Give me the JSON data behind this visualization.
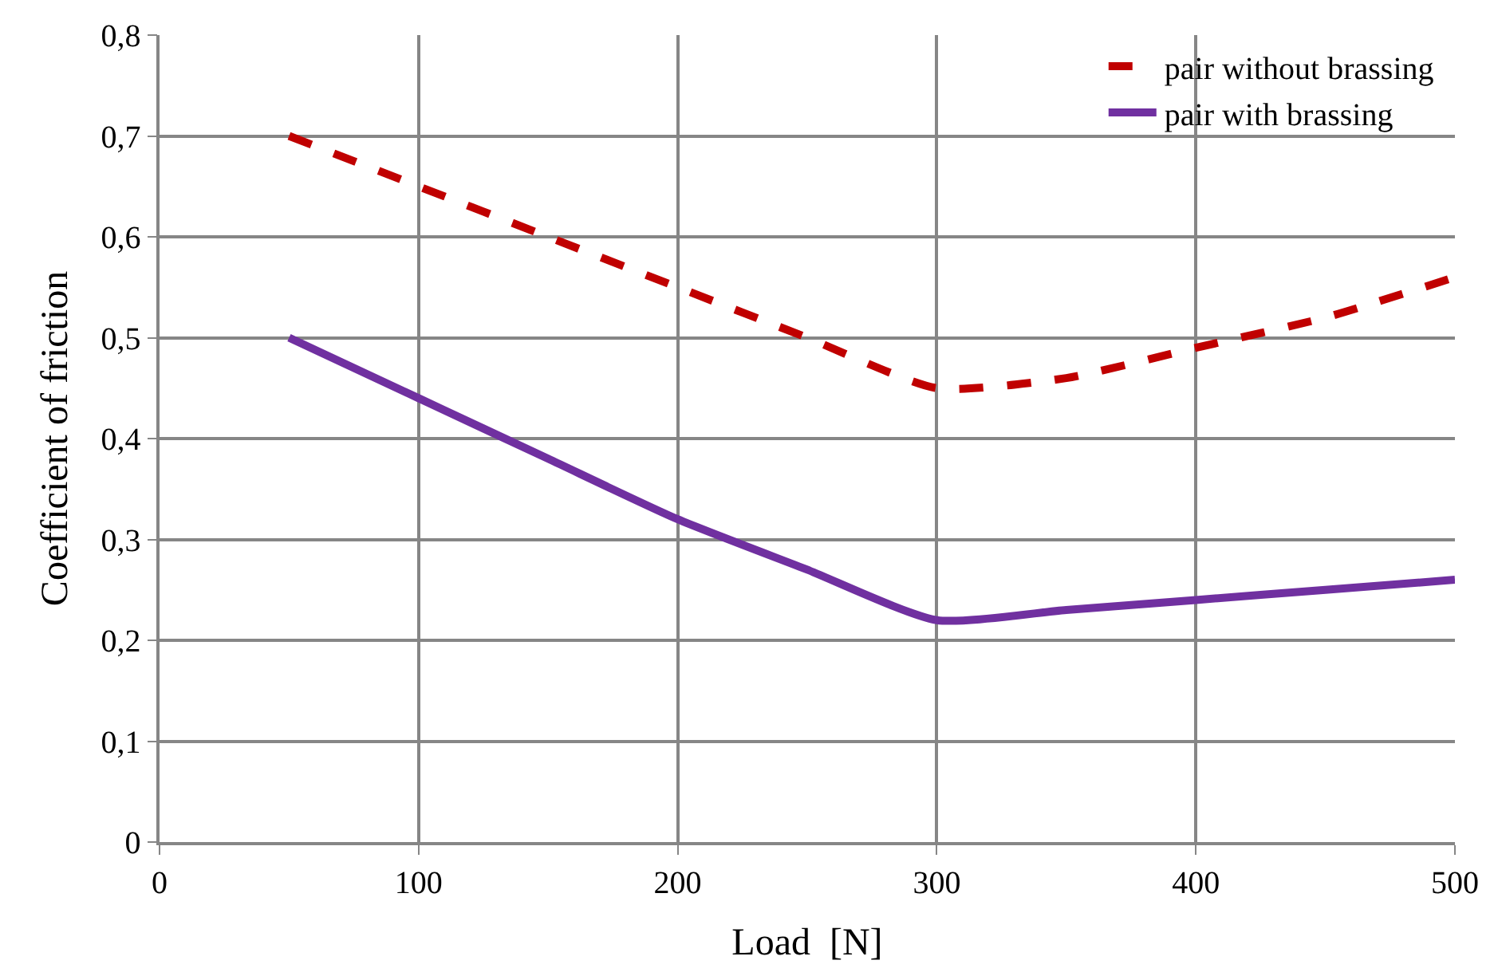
{
  "chart_data": {
    "type": "line",
    "xlabel": "Load  [N]",
    "ylabel": "Coefficient of friction",
    "x": [
      50,
      100,
      150,
      200,
      250,
      300,
      350,
      400,
      450,
      500
    ],
    "series": [
      {
        "name": "pair without brassing",
        "color": "#c00000",
        "line_style": "dashed",
        "values": [
          0.7,
          0.65,
          0.6,
          0.55,
          0.5,
          0.45,
          0.46,
          0.49,
          0.52,
          0.56
        ]
      },
      {
        "name": "pair with brassing",
        "color": "#7030a0",
        "line_style": "solid",
        "values": [
          0.5,
          0.44,
          0.38,
          0.32,
          0.27,
          0.22,
          0.23,
          0.24,
          0.25,
          0.26
        ]
      }
    ],
    "xlim": [
      0,
      500
    ],
    "xticks": [
      0,
      100,
      200,
      300,
      400,
      500
    ],
    "ylim": [
      0,
      0.8
    ],
    "yticks": [
      0,
      {
        "value": 0.1,
        "label": "0,1"
      },
      {
        "value": 0.2,
        "label": "0,2"
      },
      {
        "value": 0.3,
        "label": "0,3"
      },
      {
        "value": 0.4,
        "label": "0,4"
      },
      {
        "value": 0.5,
        "label": "0,5"
      },
      {
        "value": 0.6,
        "label": "0,6"
      },
      {
        "value": 0.7,
        "label": "0,7"
      },
      {
        "value": 0.8,
        "label": "0,8"
      }
    ],
    "grid": true,
    "legend": "top right",
    "marker": "none"
  }
}
